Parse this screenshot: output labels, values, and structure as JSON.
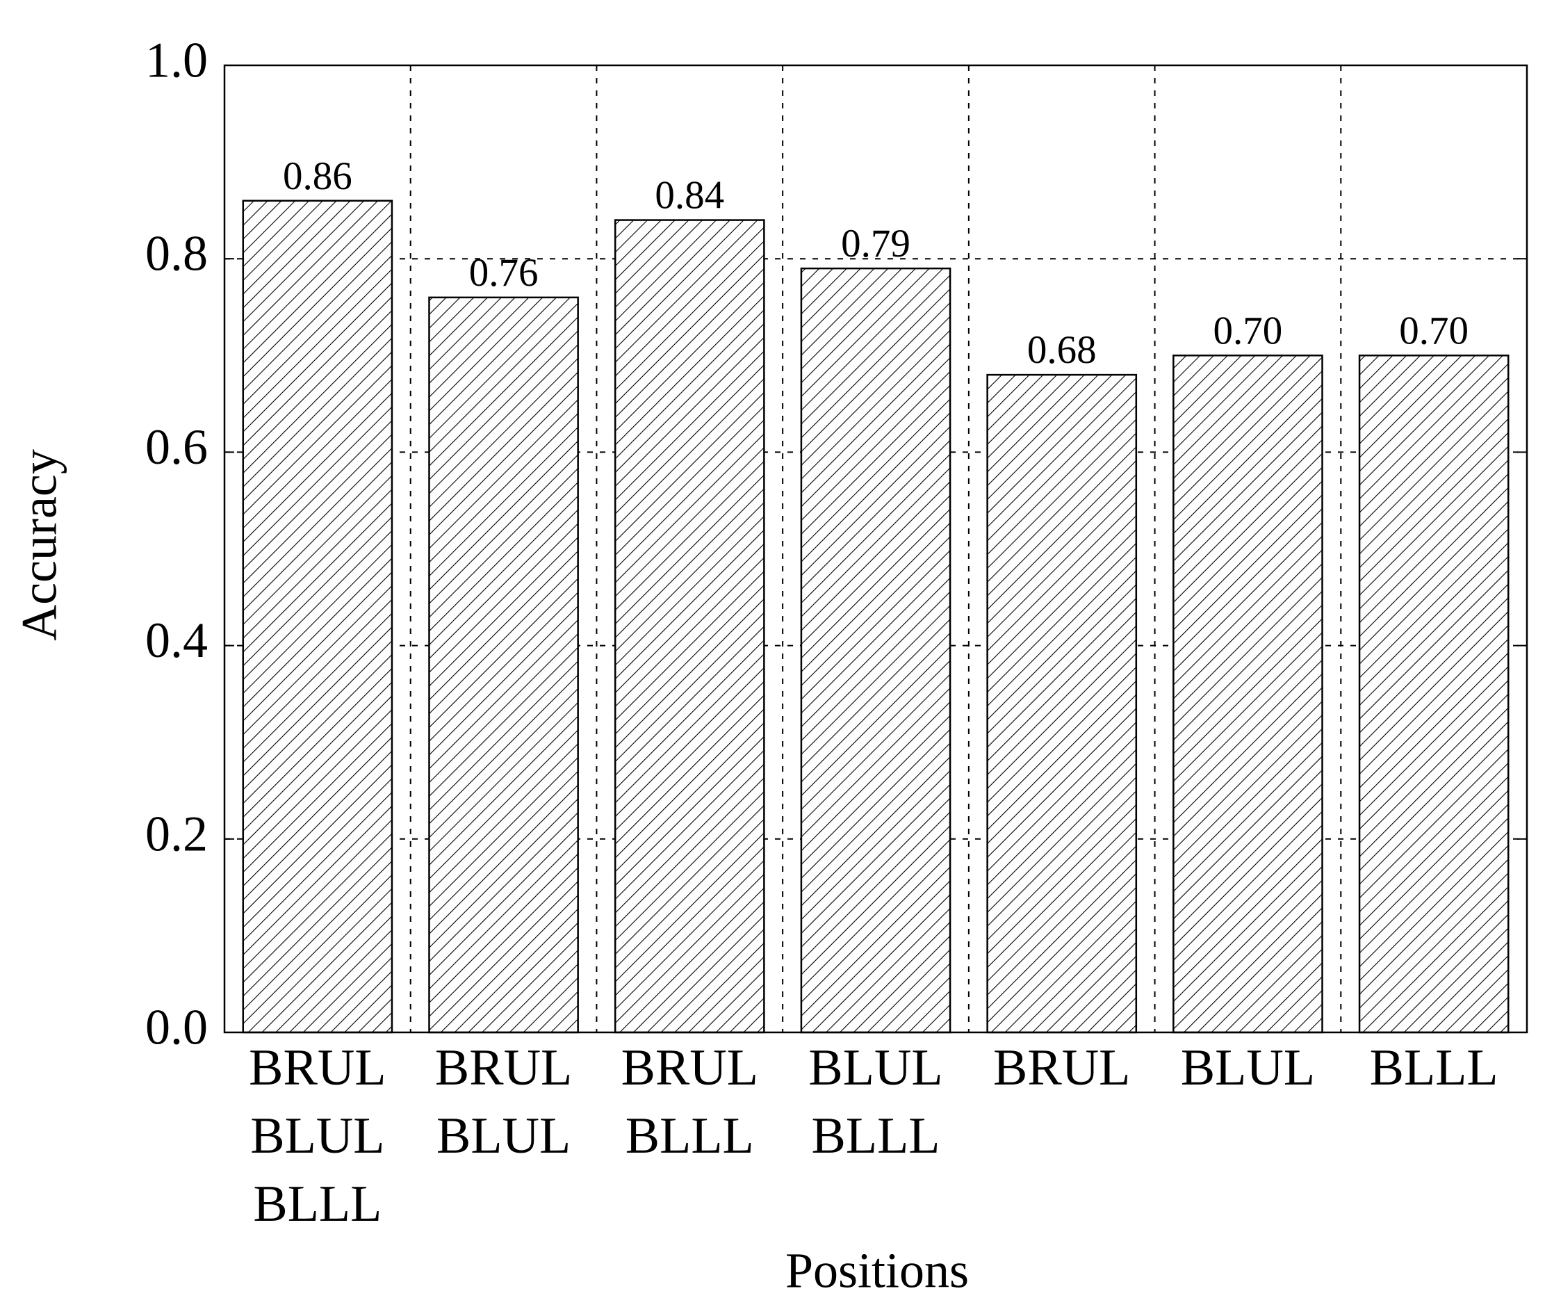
{
  "chart_data": {
    "type": "bar",
    "x_label": "Positions",
    "y_label": "Accuracy",
    "categories": [
      [
        "BRUL",
        "BLUL",
        "BLLL"
      ],
      [
        "BRUL",
        "BLUL"
      ],
      [
        "BRUL",
        "BLLL"
      ],
      [
        "BLUL",
        "BLLL"
      ],
      [
        "BRUL"
      ],
      [
        "BLUL"
      ],
      [
        "BLLL"
      ]
    ],
    "values": [
      0.86,
      0.76,
      0.84,
      0.79,
      0.68,
      0.7,
      0.7
    ],
    "value_labels": [
      "0.86",
      "0.76",
      "0.84",
      "0.79",
      "0.68",
      "0.70",
      "0.70"
    ],
    "color": "#000000",
    "ylim": [
      0,
      1
    ],
    "yticks": [
      {
        "value": 0,
        "label": "0.0"
      },
      0.2,
      0.4,
      0.6,
      0.8,
      {
        "value": 1,
        "label": "1.0"
      }
    ],
    "grid": true
  }
}
